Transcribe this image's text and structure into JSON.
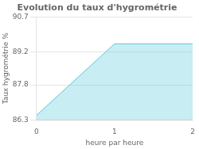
{
  "chart_data": {
    "type": "area",
    "title": "Evolution du taux d'hygrométrie",
    "xlabel": "heure par heure",
    "ylabel": "Taux hygrométrie %",
    "x": [
      0,
      1,
      2
    ],
    "values": [
      86.5,
      89.55,
      89.55
    ],
    "color": "#5bc8dc",
    "xlim": [
      0,
      2
    ],
    "ylim": [
      86.3,
      90.7
    ],
    "xticks": [
      0,
      1,
      2
    ],
    "yticks": [
      86.3,
      87.8,
      89.2,
      90.7
    ],
    "grid": "y"
  }
}
